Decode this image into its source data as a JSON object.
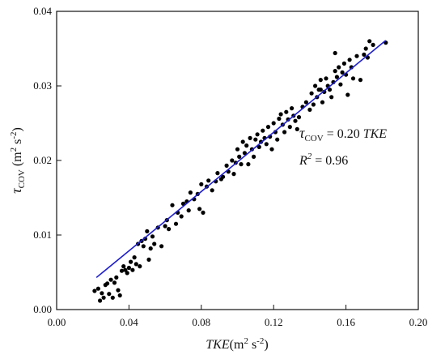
{
  "chart_data": {
    "type": "scatter",
    "xlabel": {
      "main": "TKE",
      "unit_open": "(m",
      "unit_exp1": "2",
      "unit_mid": " s",
      "unit_exp2": "-2",
      "unit_close": ")"
    },
    "ylabel": {
      "symbol": "τ",
      "subscript": "COV",
      "unit_open": " (m",
      "unit_exp1": "2",
      "unit_mid": " s",
      "unit_exp2": "-2",
      "unit_close": ")"
    },
    "xlim": [
      0.0,
      0.2
    ],
    "ylim": [
      0.0,
      0.04
    ],
    "x_ticks": [
      0.0,
      0.04,
      0.08,
      0.12,
      0.16,
      0.2
    ],
    "x_tick_labels": [
      "0.00",
      "0.04",
      "0.08",
      "0.12",
      "0.16",
      "0.20"
    ],
    "y_ticks": [
      0.0,
      0.01,
      0.02,
      0.03,
      0.04
    ],
    "y_tick_labels": [
      "0.00",
      "0.01",
      "0.02",
      "0.03",
      "0.04"
    ],
    "grid": false,
    "fit": {
      "slope": 0.2,
      "x_range": [
        0.022,
        0.182
      ],
      "y_range": [
        0.0043,
        0.0361
      ],
      "color": "#1f1fcc"
    },
    "annotation": {
      "eq_symbol": "τ",
      "eq_sub": "COV",
      "eq_rest": " = 0.20 ",
      "eq_var": "TKE",
      "r2_symbol": "R",
      "r2_exp": "2",
      "r2_rest": " = 0.96"
    },
    "marker_color": "#000000",
    "points": [
      [
        0.021,
        0.0025
      ],
      [
        0.023,
        0.0028
      ],
      [
        0.024,
        0.0012
      ],
      [
        0.025,
        0.0022
      ],
      [
        0.026,
        0.0016
      ],
      [
        0.027,
        0.0033
      ],
      [
        0.028,
        0.0035
      ],
      [
        0.029,
        0.0021
      ],
      [
        0.03,
        0.004
      ],
      [
        0.031,
        0.0016
      ],
      [
        0.032,
        0.0036
      ],
      [
        0.033,
        0.0043
      ],
      [
        0.034,
        0.0026
      ],
      [
        0.035,
        0.0019
      ],
      [
        0.036,
        0.0052
      ],
      [
        0.037,
        0.0058
      ],
      [
        0.038,
        0.0053
      ],
      [
        0.039,
        0.0049
      ],
      [
        0.04,
        0.0056
      ],
      [
        0.041,
        0.0064
      ],
      [
        0.042,
        0.0053
      ],
      [
        0.043,
        0.007
      ],
      [
        0.044,
        0.0061
      ],
      [
        0.045,
        0.0088
      ],
      [
        0.046,
        0.0058
      ],
      [
        0.047,
        0.0092
      ],
      [
        0.048,
        0.0085
      ],
      [
        0.049,
        0.0095
      ],
      [
        0.05,
        0.0105
      ],
      [
        0.051,
        0.0067
      ],
      [
        0.052,
        0.0082
      ],
      [
        0.053,
        0.0098
      ],
      [
        0.054,
        0.0088
      ],
      [
        0.056,
        0.011
      ],
      [
        0.058,
        0.0085
      ],
      [
        0.06,
        0.0112
      ],
      [
        0.061,
        0.012
      ],
      [
        0.062,
        0.0108
      ],
      [
        0.064,
        0.014
      ],
      [
        0.066,
        0.0115
      ],
      [
        0.067,
        0.013
      ],
      [
        0.069,
        0.0125
      ],
      [
        0.07,
        0.0142
      ],
      [
        0.072,
        0.0145
      ],
      [
        0.073,
        0.0133
      ],
      [
        0.074,
        0.0157
      ],
      [
        0.076,
        0.0148
      ],
      [
        0.078,
        0.0155
      ],
      [
        0.079,
        0.0135
      ],
      [
        0.08,
        0.0168
      ],
      [
        0.081,
        0.013
      ],
      [
        0.083,
        0.0165
      ],
      [
        0.084,
        0.0173
      ],
      [
        0.086,
        0.016
      ],
      [
        0.088,
        0.0172
      ],
      [
        0.089,
        0.0183
      ],
      [
        0.091,
        0.0175
      ],
      [
        0.092,
        0.0178
      ],
      [
        0.094,
        0.0193
      ],
      [
        0.095,
        0.0185
      ],
      [
        0.097,
        0.02
      ],
      [
        0.098,
        0.0182
      ],
      [
        0.099,
        0.0197
      ],
      [
        0.1,
        0.0215
      ],
      [
        0.101,
        0.0205
      ],
      [
        0.102,
        0.0195
      ],
      [
        0.103,
        0.0225
      ],
      [
        0.104,
        0.021
      ],
      [
        0.105,
        0.022
      ],
      [
        0.106,
        0.0195
      ],
      [
        0.107,
        0.023
      ],
      [
        0.108,
        0.0215
      ],
      [
        0.109,
        0.0205
      ],
      [
        0.11,
        0.0228
      ],
      [
        0.111,
        0.0235
      ],
      [
        0.112,
        0.0218
      ],
      [
        0.113,
        0.0225
      ],
      [
        0.114,
        0.024
      ],
      [
        0.115,
        0.023
      ],
      [
        0.116,
        0.0222
      ],
      [
        0.117,
        0.0245
      ],
      [
        0.118,
        0.0232
      ],
      [
        0.119,
        0.0215
      ],
      [
        0.12,
        0.025
      ],
      [
        0.121,
        0.0238
      ],
      [
        0.122,
        0.0228
      ],
      [
        0.123,
        0.0256
      ],
      [
        0.124,
        0.0262
      ],
      [
        0.125,
        0.0248
      ],
      [
        0.126,
        0.0238
      ],
      [
        0.127,
        0.0265
      ],
      [
        0.128,
        0.0255
      ],
      [
        0.129,
        0.0245
      ],
      [
        0.13,
        0.027
      ],
      [
        0.131,
        0.026
      ],
      [
        0.132,
        0.0253
      ],
      [
        0.133,
        0.0242
      ],
      [
        0.134,
        0.0258
      ],
      [
        0.136,
        0.0272
      ],
      [
        0.138,
        0.0278
      ],
      [
        0.14,
        0.0268
      ],
      [
        0.141,
        0.029
      ],
      [
        0.142,
        0.0275
      ],
      [
        0.143,
        0.03
      ],
      [
        0.144,
        0.0285
      ],
      [
        0.145,
        0.0295
      ],
      [
        0.146,
        0.0308
      ],
      [
        0.147,
        0.0278
      ],
      [
        0.148,
        0.0292
      ],
      [
        0.149,
        0.031
      ],
      [
        0.15,
        0.03
      ],
      [
        0.151,
        0.0295
      ],
      [
        0.152,
        0.0285
      ],
      [
        0.153,
        0.0305
      ],
      [
        0.154,
        0.032
      ],
      [
        0.155,
        0.0312
      ],
      [
        0.156,
        0.0325
      ],
      [
        0.157,
        0.0302
      ],
      [
        0.158,
        0.0318
      ],
      [
        0.159,
        0.033
      ],
      [
        0.16,
        0.0315
      ],
      [
        0.161,
        0.0288
      ],
      [
        0.162,
        0.0335
      ],
      [
        0.163,
        0.0325
      ],
      [
        0.164,
        0.031
      ],
      [
        0.166,
        0.034
      ],
      [
        0.168,
        0.0308
      ],
      [
        0.17,
        0.0342
      ],
      [
        0.171,
        0.035
      ],
      [
        0.172,
        0.0338
      ],
      [
        0.173,
        0.036
      ],
      [
        0.175,
        0.0355
      ],
      [
        0.182,
        0.0358
      ],
      [
        0.154,
        0.0344
      ],
      [
        0.146,
        0.0295
      ]
    ]
  }
}
